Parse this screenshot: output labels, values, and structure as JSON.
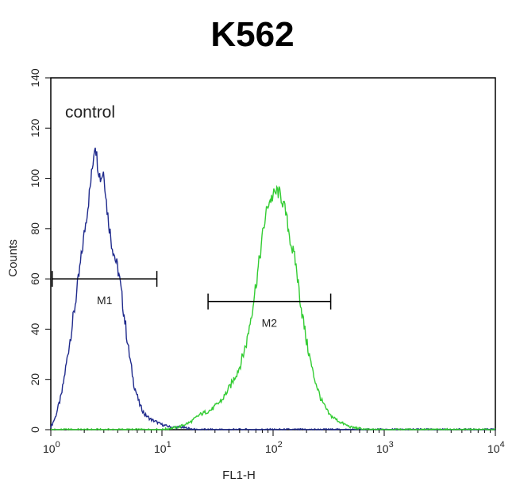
{
  "chart_data": {
    "type": "line",
    "title": "K562",
    "xlabel": "FL1-H",
    "ylabel": "Counts",
    "x_scale": "log",
    "xlim": [
      1,
      10000
    ],
    "ylim": [
      0,
      140
    ],
    "x_ticks": [
      {
        "value": 1,
        "base": "10",
        "exp": "0"
      },
      {
        "value": 10,
        "base": "10",
        "exp": "1"
      },
      {
        "value": 100,
        "base": "10",
        "exp": "2"
      },
      {
        "value": 1000,
        "base": "10",
        "exp": "3"
      },
      {
        "value": 10000,
        "base": "10",
        "exp": "4"
      }
    ],
    "y_ticks": [
      "0",
      "20",
      "40",
      "60",
      "80",
      "100",
      "120",
      "140"
    ],
    "annotation": "control",
    "series": [
      {
        "color": "#1f2a8c",
        "points": [
          [
            1.0,
            1
          ],
          [
            1.1,
            5
          ],
          [
            1.25,
            14
          ],
          [
            1.4,
            28
          ],
          [
            1.6,
            45
          ],
          [
            1.8,
            62
          ],
          [
            2.0,
            78
          ],
          [
            2.2,
            92
          ],
          [
            2.35,
            103
          ],
          [
            2.5,
            115
          ],
          [
            2.65,
            105
          ],
          [
            2.8,
            100
          ],
          [
            3.0,
            103
          ],
          [
            3.2,
            88
          ],
          [
            3.5,
            75
          ],
          [
            3.8,
            68
          ],
          [
            4.1,
            62
          ],
          [
            4.5,
            48
          ],
          [
            5.0,
            32
          ],
          [
            5.6,
            18
          ],
          [
            6.3,
            10
          ],
          [
            7.0,
            6
          ],
          [
            8.0,
            4
          ],
          [
            9.0,
            3
          ],
          [
            10.0,
            2
          ],
          [
            12.0,
            1
          ],
          [
            15.0,
            1
          ],
          [
            20.0,
            0
          ],
          [
            30.0,
            0
          ],
          [
            60.0,
            0
          ],
          [
            100.0,
            0
          ],
          [
            300.0,
            0
          ],
          [
            1000.0,
            0
          ],
          [
            10000.0,
            0
          ]
        ]
      },
      {
        "color": "#33cc33",
        "points": [
          [
            1.0,
            0
          ],
          [
            10.0,
            0
          ],
          [
            14.0,
            1
          ],
          [
            18.0,
            3
          ],
          [
            22.0,
            6
          ],
          [
            28.0,
            8
          ],
          [
            35.0,
            12
          ],
          [
            42.0,
            18
          ],
          [
            50.0,
            25
          ],
          [
            58.0,
            35
          ],
          [
            66.0,
            50
          ],
          [
            74.0,
            65
          ],
          [
            82.0,
            80
          ],
          [
            90.0,
            90
          ],
          [
            100.0,
            93
          ],
          [
            110.0,
            95
          ],
          [
            120.0,
            92
          ],
          [
            130.0,
            86
          ],
          [
            145.0,
            74
          ],
          [
            160.0,
            66
          ],
          [
            180.0,
            48
          ],
          [
            200.0,
            35
          ],
          [
            230.0,
            22
          ],
          [
            270.0,
            12
          ],
          [
            320.0,
            6
          ],
          [
            400.0,
            3
          ],
          [
            500.0,
            1
          ],
          [
            700.0,
            0
          ],
          [
            1000.0,
            0
          ],
          [
            10000.0,
            0
          ]
        ]
      }
    ],
    "markers": [
      {
        "name": "M1",
        "x_range": [
          1.03,
          9.0
        ],
        "y": 60
      },
      {
        "name": "M2",
        "x_range": [
          26.0,
          330.0
        ],
        "y": 51
      }
    ]
  }
}
